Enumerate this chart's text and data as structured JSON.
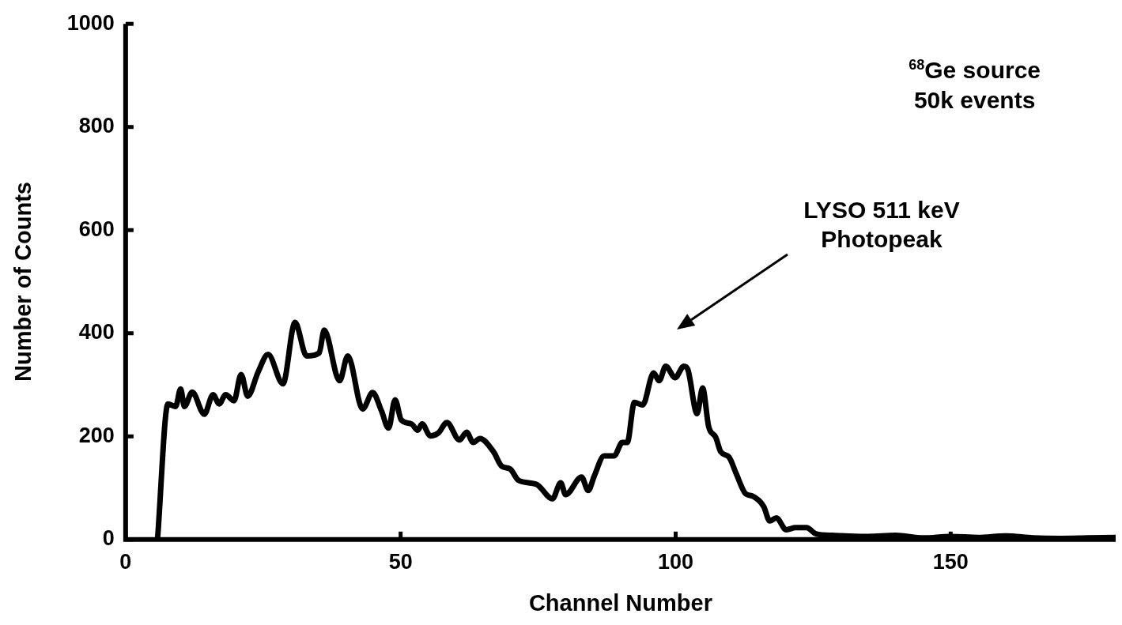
{
  "chart_data": {
    "type": "line",
    "xlabel": "Channel Number",
    "ylabel": "Number of Counts",
    "xlim": [
      0,
      180
    ],
    "xticks": [
      0,
      50,
      100,
      150
    ],
    "ylim": [
      0,
      1000
    ],
    "yticks": [
      0,
      200,
      400,
      600,
      800,
      1000
    ],
    "marker": "none",
    "line_style": "solid",
    "annotations": [
      "$^{68}$Ge source\n50k events",
      "LYSO 511 keV\nPhotopeak"
    ],
    "series": [
      {
        "color": "#000000",
        "x": [
          5.8,
          7.7,
          9.1,
          10.0,
          10.7,
          12.1,
          14.3,
          15.9,
          17.0,
          18.2,
          19.7,
          21.0,
          22.2,
          24.1,
          25.9,
          28.6,
          30.8,
          32.9,
          35.2,
          36.1,
          38.9,
          40.4,
          43.1,
          44.9,
          46.5,
          47.8,
          49.0,
          50.1,
          52.0,
          53.1,
          53.9,
          55.4,
          56.9,
          58.4,
          60.7,
          62.0,
          63.2,
          64.4,
          66.9,
          68.4,
          69.9,
          71.4,
          74.7,
          77.6,
          79.1,
          80.0,
          82.9,
          84.1,
          85.2,
          87.0,
          88.8,
          90.3,
          91.2,
          92.5,
          94.0,
          96.0,
          97.0,
          98.2,
          99.9,
          101.5,
          102.2,
          103.9,
          104.9,
          106.0,
          107.3,
          108.2,
          109.7,
          111.0,
          112.7,
          114.0,
          116.0,
          117.1,
          118.3,
          120.1,
          121.8,
          123.8,
          125.5,
          128.6,
          135,
          140,
          145,
          150,
          155,
          160,
          165,
          170,
          175,
          180
        ],
        "values": [
          0,
          263,
          258,
          292,
          258,
          286,
          243,
          281,
          263,
          281,
          269,
          320,
          278,
          325,
          359,
          302,
          421,
          356,
          362,
          406,
          308,
          356,
          253,
          285,
          250,
          216,
          271,
          232,
          224,
          212,
          224,
          201,
          207,
          227,
          193,
          208,
          188,
          196,
          170,
          142,
          137,
          115,
          107,
          79,
          110,
          87,
          121,
          95,
          123,
          162,
          162,
          188,
          188,
          266,
          261,
          323,
          308,
          336,
          314,
          336,
          330,
          244,
          294,
          219,
          198,
          170,
          160,
          128,
          89,
          84,
          64,
          36,
          42,
          19,
          23,
          23,
          11,
          8,
          6,
          8,
          3,
          6,
          4,
          7,
          3,
          2,
          3,
          4
        ]
      }
    ]
  }
}
